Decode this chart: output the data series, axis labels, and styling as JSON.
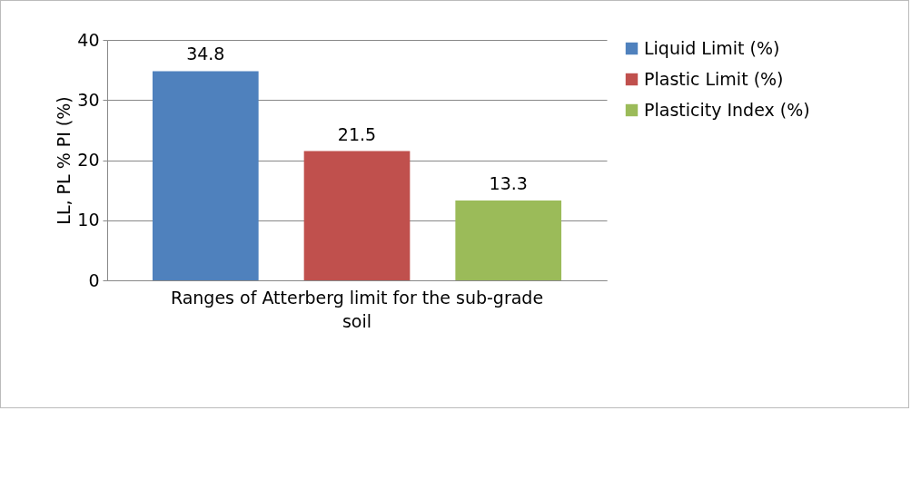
{
  "chart_data": {
    "type": "bar",
    "categories": [
      "Ranges of Atterberg limit for the sub-grade soil"
    ],
    "ylabel": "LL, PL % PI (%)",
    "series": [
      {
        "name": "Liquid Limit (%)",
        "color": "#4f81bd",
        "values": [
          34.8
        ]
      },
      {
        "name": "Plastic Limit (%)",
        "color": "#c0504d",
        "values": [
          21.5
        ]
      },
      {
        "name": "Plasticity Index (%)",
        "color": "#9bbb59",
        "values": [
          13.3
        ]
      }
    ],
    "ylim": [
      0,
      40
    ],
    "yticks": [
      0,
      10,
      20,
      30,
      40
    ],
    "grid": "y",
    "legend": "right",
    "data_labels": true
  }
}
